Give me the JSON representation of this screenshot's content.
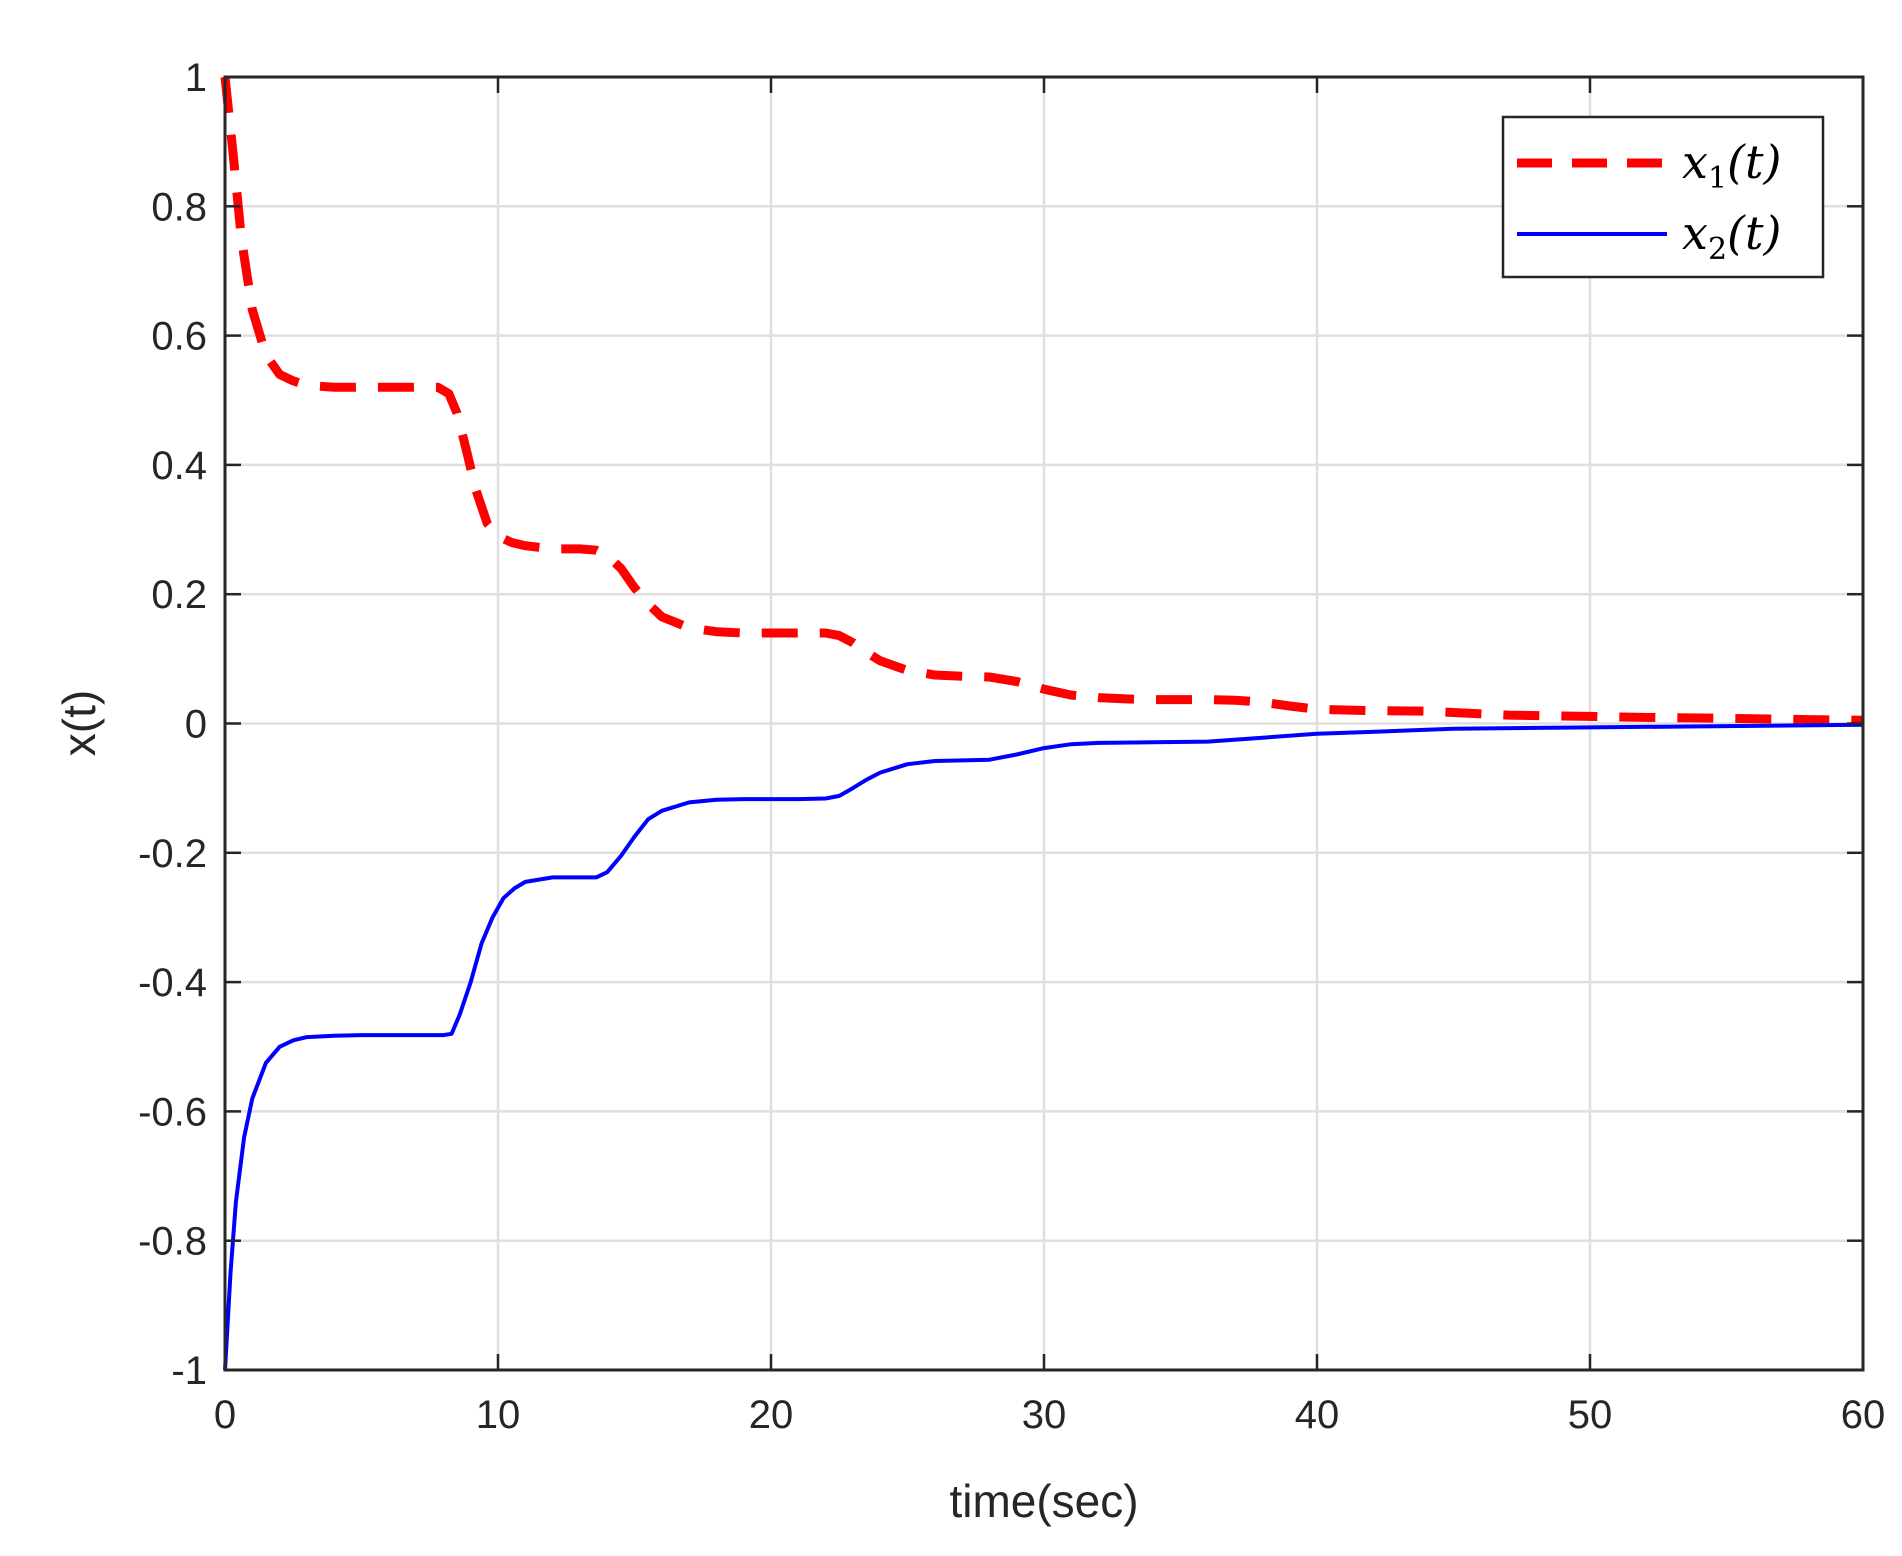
{
  "chart_data": {
    "type": "line",
    "title": "",
    "xlabel": "time(sec)",
    "ylabel": "x(t)",
    "xlim": [
      0,
      60
    ],
    "ylim": [
      -1,
      1
    ],
    "xticks": [
      0,
      10,
      20,
      30,
      40,
      50,
      60
    ],
    "yticks": [
      -1,
      -0.8,
      -0.6,
      -0.4,
      -0.2,
      0,
      0.2,
      0.4,
      0.6,
      0.8,
      1
    ],
    "xtick_labels": [
      "0",
      "10",
      "20",
      "30",
      "40",
      "50",
      "60"
    ],
    "ytick_labels": [
      "-1",
      "-0.8",
      "-0.6",
      "-0.4",
      "-0.2",
      "0",
      "0.2",
      "0.4",
      "0.6",
      "0.8",
      "1"
    ],
    "grid": true,
    "legend_position": "top-right",
    "series": [
      {
        "name": "x1(t)",
        "legend_main": "x",
        "legend_sub": "1",
        "legend_tail": "(t)",
        "color": "#ff0000",
        "style": "dashed",
        "x": [
          0,
          0.3,
          0.6,
          1.0,
          1.5,
          2.0,
          2.5,
          3.0,
          4.0,
          5.0,
          6.0,
          7.0,
          7.8,
          8.2,
          8.5,
          8.8,
          9.2,
          9.6,
          10.0,
          10.5,
          11.0,
          12.0,
          13.0,
          13.6,
          14.0,
          14.5,
          15.0,
          15.5,
          16.0,
          17.0,
          18.0,
          19.0,
          20.0,
          21.0,
          22.0,
          22.5,
          23.0,
          23.5,
          24.0,
          25.0,
          26.0,
          27.0,
          28.0,
          29.0,
          30.0,
          31.0,
          32.0,
          33.0,
          34.0,
          35.0,
          36.0,
          37.0,
          38.0,
          39.0,
          40.0,
          42.0,
          44.0,
          45.0,
          47.0,
          50.0,
          51.0,
          53.0,
          55.0,
          58.0,
          60.0
        ],
        "y": [
          1.0,
          0.88,
          0.75,
          0.64,
          0.57,
          0.54,
          0.53,
          0.523,
          0.52,
          0.52,
          0.52,
          0.52,
          0.52,
          0.51,
          0.48,
          0.43,
          0.36,
          0.31,
          0.29,
          0.28,
          0.275,
          0.27,
          0.27,
          0.268,
          0.26,
          0.24,
          0.21,
          0.185,
          0.165,
          0.148,
          0.142,
          0.14,
          0.14,
          0.14,
          0.14,
          0.136,
          0.125,
          0.11,
          0.097,
          0.082,
          0.075,
          0.073,
          0.072,
          0.065,
          0.053,
          0.044,
          0.04,
          0.038,
          0.037,
          0.037,
          0.037,
          0.036,
          0.033,
          0.027,
          0.022,
          0.02,
          0.019,
          0.017,
          0.013,
          0.011,
          0.01,
          0.009,
          0.008,
          0.006,
          0.005
        ]
      },
      {
        "name": "x2(t)",
        "legend_main": "x",
        "legend_sub": "2",
        "legend_tail": "(t)",
        "color": "#0000ff",
        "style": "solid",
        "x": [
          0,
          0.2,
          0.4,
          0.7,
          1.0,
          1.5,
          2.0,
          2.5,
          3.0,
          4.0,
          5.0,
          6.0,
          7.0,
          8.0,
          8.3,
          8.6,
          9.0,
          9.4,
          9.8,
          10.2,
          10.6,
          11.0,
          12.0,
          13.0,
          13.6,
          14.0,
          14.5,
          15.0,
          15.5,
          16.0,
          17.0,
          18.0,
          19.0,
          20.0,
          21.0,
          22.0,
          22.5,
          23.0,
          23.5,
          24.0,
          25.0,
          26.0,
          27.0,
          28.0,
          29.0,
          30.0,
          31.0,
          32.0,
          34.0,
          36.0,
          38.0,
          40.0,
          42.0,
          45.0,
          50.0,
          55.0,
          60.0
        ],
        "y": [
          -1.0,
          -0.85,
          -0.74,
          -0.64,
          -0.58,
          -0.525,
          -0.5,
          -0.49,
          -0.485,
          -0.483,
          -0.482,
          -0.482,
          -0.482,
          -0.482,
          -0.48,
          -0.45,
          -0.4,
          -0.34,
          -0.3,
          -0.27,
          -0.255,
          -0.245,
          -0.238,
          -0.238,
          -0.238,
          -0.23,
          -0.205,
          -0.175,
          -0.148,
          -0.135,
          -0.122,
          -0.118,
          -0.117,
          -0.117,
          -0.117,
          -0.116,
          -0.112,
          -0.1,
          -0.087,
          -0.076,
          -0.063,
          -0.058,
          -0.057,
          -0.056,
          -0.048,
          -0.038,
          -0.032,
          -0.03,
          -0.029,
          -0.028,
          -0.022,
          -0.016,
          -0.013,
          -0.008,
          -0.006,
          -0.004,
          -0.002
        ]
      }
    ]
  }
}
